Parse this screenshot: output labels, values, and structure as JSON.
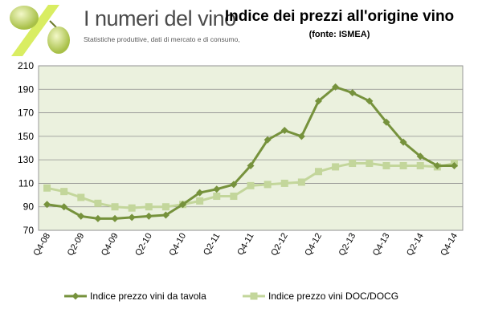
{
  "logo": {
    "title": "I numeri del vino",
    "subtitle": "Statistiche produttive, dati di mercato e di consumo,"
  },
  "colors": {
    "series1": "#76923c",
    "series2": "#c3d69b",
    "plot_bg": "#ebf1de",
    "grid": "#8e8e8e"
  },
  "chart_data": {
    "type": "line",
    "title": "Indice dei prezzi all'origine vino",
    "subtitle": "(fonte:  ISMEA)",
    "xlabel": "",
    "ylabel": "",
    "ylim": [
      70,
      210
    ],
    "yticks": [
      70,
      90,
      110,
      130,
      150,
      170,
      190,
      210
    ],
    "grid": true,
    "legend_position": "bottom",
    "x": [
      "Q4-08",
      "Q1-09",
      "Q2-09",
      "Q3-09",
      "Q4-09",
      "Q1-10",
      "Q2-10",
      "Q3-10",
      "Q4-10",
      "Q1-11",
      "Q2-11",
      "Q3-11",
      "Q4-11",
      "Q1-12",
      "Q2-12",
      "Q3-12",
      "Q4-12",
      "Q1-13",
      "Q2-13",
      "Q3-13",
      "Q4-13",
      "Q1-14",
      "Q2-14",
      "Q3-14",
      "Q4-14"
    ],
    "x_tick_labels": [
      "Q4-08",
      "Q2-09",
      "Q4-09",
      "Q2-10",
      "Q4-10",
      "Q2-11",
      "Q4-11",
      "Q2-12",
      "Q4-12",
      "Q2-13",
      "Q4-13",
      "Q2-14",
      "Q4-14"
    ],
    "series": [
      {
        "name": "Indice prezzo vini da tavola",
        "marker": "diamond",
        "values": [
          92,
          90,
          82,
          80,
          80,
          81,
          82,
          83,
          92,
          102,
          105,
          109,
          125,
          147,
          155,
          150,
          180,
          192,
          187,
          180,
          162,
          145,
          133,
          125,
          125
        ]
      },
      {
        "name": "Indice prezzo vini DOC/DOCG",
        "marker": "square",
        "values": [
          106,
          103,
          98,
          93,
          90,
          89,
          90,
          90,
          92,
          95,
          99,
          99,
          108,
          109,
          110,
          111,
          120,
          124,
          127,
          127,
          125,
          125,
          125,
          124,
          127
        ]
      }
    ]
  }
}
